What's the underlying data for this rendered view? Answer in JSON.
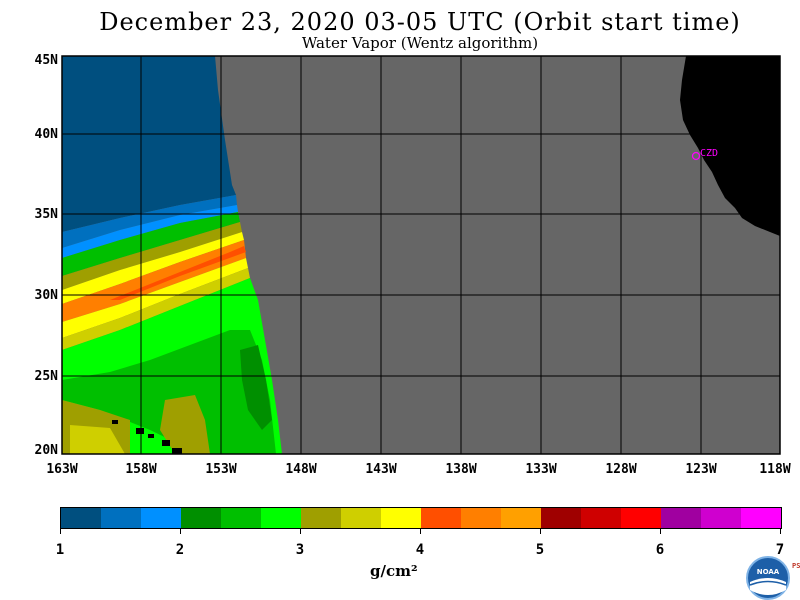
{
  "header": {
    "title": "December 23, 2020  03-05 UTC  (Orbit start time)",
    "subtitle": "Water Vapor (Wentz algorithm)"
  },
  "map": {
    "lat_labels": [
      "45N",
      "40N",
      "35N",
      "30N",
      "25N",
      "20N"
    ],
    "lon_labels": [
      "163W",
      "158W",
      "153W",
      "148W",
      "143W",
      "138W",
      "133W",
      "128W",
      "123W",
      "118W"
    ],
    "station_label": "CZD",
    "colors": {
      "no_data": "#666666",
      "land": "#000000",
      "grid": "#000000",
      "station": "#ff00ff"
    }
  },
  "colorbar": {
    "ticks": [
      "1",
      "2",
      "3",
      "4",
      "5",
      "6",
      "7"
    ],
    "units": "g/cm²",
    "colors": [
      "#004f7f",
      "#0070bf",
      "#0090ff",
      "#008f00",
      "#00bf00",
      "#00ff00",
      "#9f9f00",
      "#cfcf00",
      "#ffff00",
      "#ff4f00",
      "#ff7f00",
      "#ffa000",
      "#9f0000",
      "#cf0000",
      "#ff0000",
      "#a000a0",
      "#cf00cf",
      "#ff00ff"
    ]
  },
  "logo": {
    "text": "NOAA",
    "side_text": "PSL"
  }
}
